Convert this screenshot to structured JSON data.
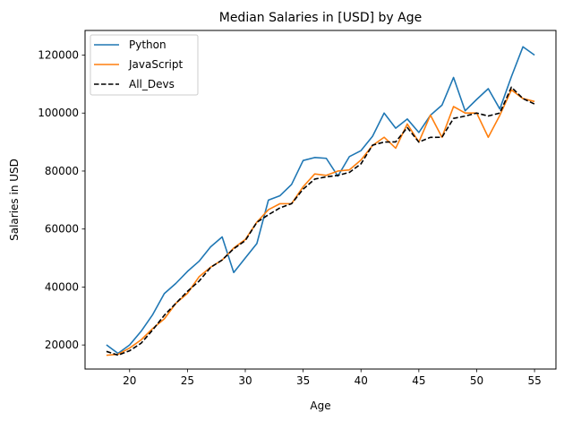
{
  "chart_data": {
    "type": "line",
    "title": "Median Salaries in [USD] by Age",
    "xlabel": "Age",
    "ylabel": "Salaries in USD",
    "x": [
      18,
      19,
      20,
      21,
      22,
      23,
      24,
      25,
      26,
      27,
      28,
      29,
      30,
      31,
      32,
      33,
      34,
      35,
      36,
      37,
      38,
      39,
      40,
      41,
      42,
      43,
      44,
      45,
      46,
      47,
      48,
      49,
      50,
      51,
      52,
      53,
      54,
      55
    ],
    "xlim": [
      16.15,
      56.85
    ],
    "ylim": [
      11700,
      128500
    ],
    "xticks": [
      20,
      25,
      30,
      35,
      40,
      45,
      50,
      55
    ],
    "yticks": [
      20000,
      40000,
      60000,
      80000,
      100000,
      120000
    ],
    "legend_position": "upper-left",
    "grid": false,
    "series": [
      {
        "name": "Python",
        "color": "#1f77b4",
        "linestyle": "solid",
        "values": [
          20046,
          17100,
          20000,
          24744,
          30500,
          37732,
          41247,
          45372,
          48876,
          53850,
          57287,
          45000,
          50000,
          55000,
          70000,
          71496,
          75370,
          83640,
          84666,
          84392,
          78254,
          85000,
          87038,
          91991,
          100000,
          94796,
          97962,
          93302,
          99240,
          102736,
          112285,
          100771,
          104708,
          108423,
          101407,
          112542,
          122870,
          120000
        ]
      },
      {
        "name": "JavaScript",
        "color": "#ff7f0e",
        "linestyle": "solid",
        "values": [
          16446,
          16791,
          18942,
          21780,
          25704,
          29000,
          34372,
          37810,
          43515,
          46823,
          49293,
          53437,
          56373,
          62375,
          66674,
          68745,
          68746,
          74583,
          79000,
          78508,
          79996,
          80403,
          83820,
          88833,
          91660,
          87892,
          96243,
          90000,
          99313,
          91660,
          102264,
          100000,
          100000,
          91660,
          99240,
          108000,
          105000,
          104000
        ]
      },
      {
        "name": "All_Devs",
        "color": "#000000",
        "linestyle": "dashed",
        "values": [
          17784,
          16500,
          18012,
          20628,
          25206,
          30252,
          34368,
          38496,
          42000,
          46752,
          49320,
          53200,
          56000,
          62316,
          64928,
          67317,
          68748,
          73752,
          77232,
          78000,
          78508,
          79536,
          82488,
          88935,
          90000,
          90056,
          95000,
          90000,
          91633,
          91660,
          98150,
          98964,
          100000,
          98988,
          100000,
          108923,
          105000,
          103117
        ]
      }
    ]
  }
}
